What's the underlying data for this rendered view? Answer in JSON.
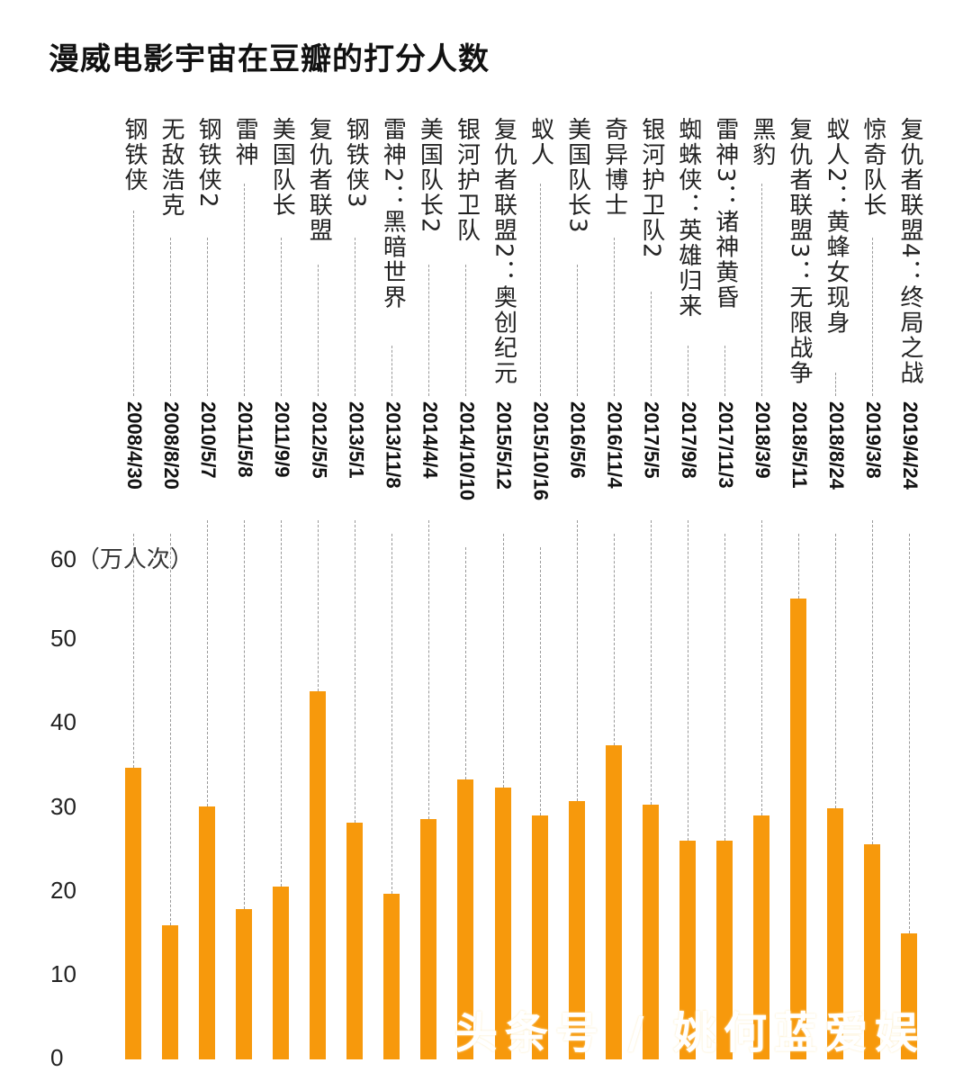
{
  "title": "漫威电影宇宙在豆瓣的打分人数",
  "watermark": "头条号 / 姚何蓝爱娱",
  "colors": {
    "bar": "#f7990c",
    "text": "#111111",
    "guide": "#999999"
  },
  "y_axis": {
    "unit": "（万人次）",
    "ticks": [
      "60",
      "50",
      "40",
      "30",
      "20",
      "10",
      "0"
    ]
  },
  "chart_data": {
    "type": "bar",
    "title": "漫威电影宇宙在豆瓣的打分人数",
    "xlabel": "",
    "ylabel": "万人次",
    "ylim": [
      0,
      60
    ],
    "grid": false,
    "categories": [
      "钢铁侠",
      "无敌浩克",
      "钢铁侠2",
      "雷神",
      "美国队长",
      "复仇者联盟",
      "钢铁侠3",
      "雷神2：黑暗世界",
      "美国队长2",
      "银河护卫队",
      "复仇者联盟2：奥创纪元",
      "蚁人",
      "美国队长3",
      "奇异博士",
      "银河护卫队2",
      "蜘蛛侠：英雄归来",
      "雷神3：诸神黄昏",
      "黑豹",
      "复仇者联盟3：无限战争",
      "蚁人2：黄蜂女现身",
      "惊奇队长",
      "复仇者联盟4：终局之战"
    ],
    "dates": [
      "2008/4/30",
      "2008/8/20",
      "2010/5/7",
      "2011/5/8",
      "2011/9/9",
      "2012/5/5",
      "2013/5/1",
      "2013/11/8",
      "2014/4/4",
      "2014/10/10",
      "2015/5/12",
      "2015/10/16",
      "2016/5/6",
      "2016/11/4",
      "2017/5/5",
      "2017/9/8",
      "2017/11/3",
      "2018/3/9",
      "2018/5/11",
      "2018/8/24",
      "2019/3/8",
      "2019/4/24"
    ],
    "values": [
      34.7,
      15.9,
      30.1,
      17.8,
      20.5,
      43.8,
      28.1,
      19.6,
      28.5,
      33.3,
      32.3,
      29.0,
      30.7,
      37.4,
      30.3,
      26.0,
      26.0,
      29.0,
      54.8,
      29.8,
      25.5,
      14.9
    ]
  },
  "columns": [
    {
      "name": "钢铁侠",
      "date": "2008/4/30"
    },
    {
      "name": "无敌浩克",
      "date": "2008/8/20"
    },
    {
      "name": "钢铁侠2",
      "date": "2010/5/7"
    },
    {
      "name": "雷神",
      "date": "2011/5/8"
    },
    {
      "name": "美国队长",
      "date": "2011/9/9"
    },
    {
      "name": "复仇者联盟",
      "date": "2012/5/5"
    },
    {
      "name": "钢铁侠3",
      "date": "2013/5/1"
    },
    {
      "name": "雷神2：黑暗世界",
      "date": "2013/11/8"
    },
    {
      "name": "美国队长2",
      "date": "2014/4/4"
    },
    {
      "name": "银河护卫队",
      "date": "2014/10/10"
    },
    {
      "name": "复仇者联盟2：奥创纪元",
      "date": "2015/5/12"
    },
    {
      "name": "蚁人",
      "date": "2015/10/16"
    },
    {
      "name": "美国队长3",
      "date": "2016/5/6"
    },
    {
      "name": "奇异博士",
      "date": "2016/11/4"
    },
    {
      "name": "银河护卫队2",
      "date": "2017/5/5"
    },
    {
      "name": "蜘蛛侠：英雄归来",
      "date": "2017/9/8"
    },
    {
      "name": "雷神3：诸神黄昏",
      "date": "2017/11/3"
    },
    {
      "name": "黑豹",
      "date": "2018/3/9"
    },
    {
      "name": "复仇者联盟3：无限战争",
      "date": "2018/5/11"
    },
    {
      "name": "蚁人2：黄蜂女现身",
      "date": "2018/8/24"
    },
    {
      "name": "惊奇队长",
      "date": "2019/3/8"
    },
    {
      "name": "复仇者联盟4：终局之战",
      "date": "2019/4/24"
    }
  ]
}
